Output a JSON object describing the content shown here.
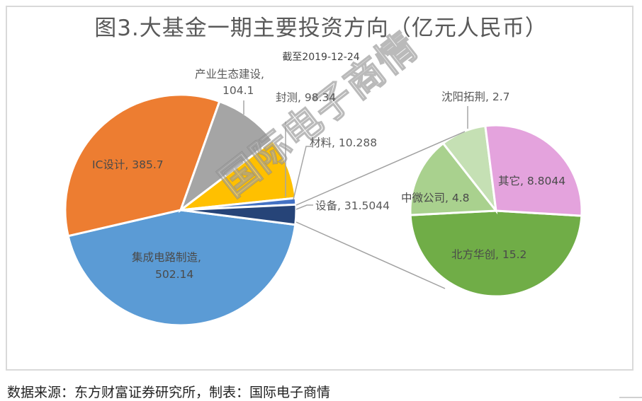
{
  "header": {
    "title": "图3.大基金一期主要投资方向（亿元人民币）",
    "subtitle": "截至2019-12-24"
  },
  "footer": {
    "source": "数据来源：东方财富证券研究所，制表：国际电子商情"
  },
  "watermark": "国际电子商情",
  "labels": {
    "jicheng_name": "集成电路制造,",
    "jicheng_value": "502.14",
    "ic": "IC设计, 385.7",
    "chanye_name": "产业生态建设,",
    "chanye_value": "104.1",
    "fengce": "封测, 98.34",
    "cailiao": "材料, 10.288",
    "shebei": "设备, 31.5044",
    "shenyang": "沈阳拓荆, 2.7",
    "qita": "其它, 8.8044",
    "zhongwei": "中微公司, 4.8",
    "beifang": "北方华创, 15.2"
  },
  "colors": {
    "jicheng": "#5b9bd5",
    "ic": "#ed7d31",
    "chanye": "#a5a5a5",
    "fengce": "#ffc000",
    "cailiao": "#4472c4",
    "shebei": "#264478",
    "beifang": "#70ad47",
    "zhongwei": "#a9d18e",
    "shenyang": "#c5e0b4",
    "qita": "#e4a3dd"
  },
  "chart_data": {
    "type": "pie",
    "subtype": "pie-of-pie",
    "title": "图3.大基金一期主要投资方向（亿元人民币）",
    "subtitle": "截至2019-12-24",
    "unit": "亿元人民币",
    "main_pie": {
      "categories": [
        "集成电路制造",
        "IC设计",
        "产业生态建设",
        "封测",
        "材料",
        "设备"
      ],
      "values": [
        502.14,
        385.7,
        104.1,
        98.34,
        10.288,
        31.5044
      ]
    },
    "secondary_pie": {
      "parent": "设备",
      "categories": [
        "北方华创",
        "中微公司",
        "沈阳拓荆",
        "其它"
      ],
      "values": [
        15.2,
        4.8,
        2.7,
        8.8044
      ]
    },
    "legend": "none (data labels)",
    "source": "数据来源：东方财富证券研究所，制表：国际电子商情"
  }
}
